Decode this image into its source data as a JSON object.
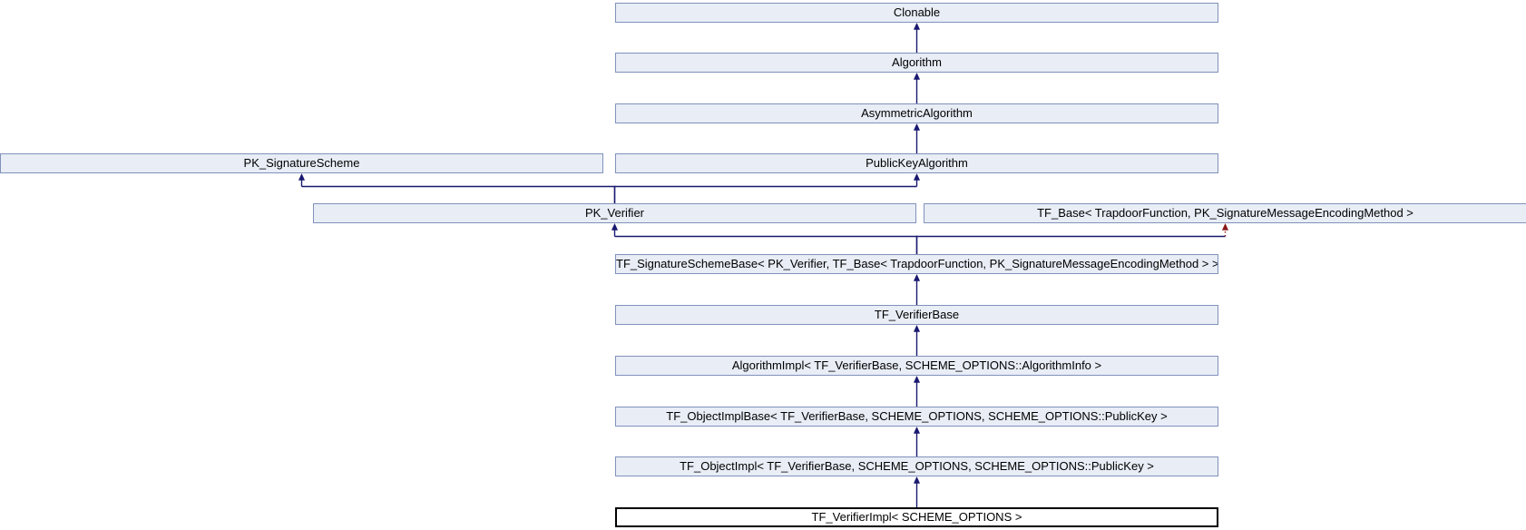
{
  "diagram": {
    "type": "class-inheritance-graph",
    "nodes": [
      {
        "id": "clonable",
        "label": "Clonable",
        "current": false
      },
      {
        "id": "algorithm",
        "label": "Algorithm",
        "current": false
      },
      {
        "id": "asymmetric_algorithm",
        "label": "AsymmetricAlgorithm",
        "current": false
      },
      {
        "id": "pk_signature_scheme",
        "label": "PK_SignatureScheme",
        "current": false
      },
      {
        "id": "public_key_algorithm",
        "label": "PublicKeyAlgorithm",
        "current": false
      },
      {
        "id": "pk_verifier",
        "label": "PK_Verifier",
        "current": false
      },
      {
        "id": "tf_base",
        "label": "TF_Base< TrapdoorFunction, PK_SignatureMessageEncodingMethod >",
        "current": false
      },
      {
        "id": "tf_signature_scheme_base",
        "label": "TF_SignatureSchemeBase< PK_Verifier, TF_Base< TrapdoorFunction, PK_SignatureMessageEncodingMethod > >",
        "current": false
      },
      {
        "id": "tf_verifier_base",
        "label": "TF_VerifierBase",
        "current": false
      },
      {
        "id": "algorithm_impl",
        "label": "AlgorithmImpl< TF_VerifierBase, SCHEME_OPTIONS::AlgorithmInfo >",
        "current": false
      },
      {
        "id": "tf_object_impl_base",
        "label": "TF_ObjectImplBase< TF_VerifierBase, SCHEME_OPTIONS, SCHEME_OPTIONS::PublicKey >",
        "current": false
      },
      {
        "id": "tf_object_impl",
        "label": "TF_ObjectImpl< TF_VerifierBase, SCHEME_OPTIONS, SCHEME_OPTIONS::PublicKey >",
        "current": false
      },
      {
        "id": "tf_verifier_impl",
        "label": "TF_VerifierImpl< SCHEME_OPTIONS >",
        "current": true
      }
    ],
    "edges": [
      {
        "from": "algorithm",
        "to": "clonable",
        "style": "public"
      },
      {
        "from": "asymmetric_algorithm",
        "to": "algorithm",
        "style": "public"
      },
      {
        "from": "public_key_algorithm",
        "to": "asymmetric_algorithm",
        "style": "public"
      },
      {
        "from": "pk_verifier",
        "to": "pk_signature_scheme",
        "style": "public"
      },
      {
        "from": "pk_verifier",
        "to": "public_key_algorithm",
        "style": "public"
      },
      {
        "from": "tf_signature_scheme_base",
        "to": "pk_verifier",
        "style": "public"
      },
      {
        "from": "tf_signature_scheme_base",
        "to": "tf_base",
        "style": "private"
      },
      {
        "from": "tf_verifier_base",
        "to": "tf_signature_scheme_base",
        "style": "public"
      },
      {
        "from": "algorithm_impl",
        "to": "tf_verifier_base",
        "style": "public"
      },
      {
        "from": "tf_object_impl_base",
        "to": "algorithm_impl",
        "style": "public"
      },
      {
        "from": "tf_object_impl",
        "to": "tf_object_impl_base",
        "style": "public"
      },
      {
        "from": "tf_verifier_impl",
        "to": "tf_object_impl",
        "style": "public"
      }
    ],
    "colors": {
      "node_fill": "#e8edf6",
      "node_border": "#8191bb",
      "current_fill": "#ffffff",
      "current_border": "#000000",
      "edge_public": "#191970",
      "edge_private": "#8b1a1a",
      "text": "#000000",
      "background": "#ffffff"
    }
  }
}
